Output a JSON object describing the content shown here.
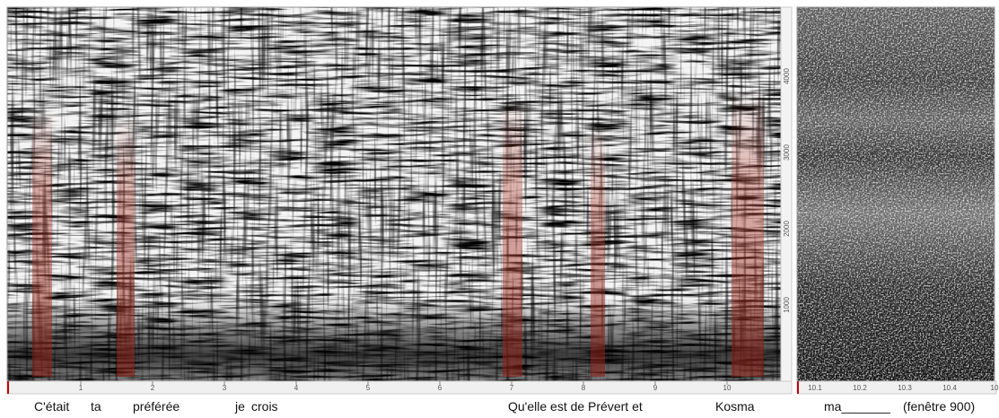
{
  "left_panel": {
    "time_ticks": [
      "1",
      "2",
      "3",
      "4",
      "5",
      "6",
      "7",
      "8",
      "9",
      "10"
    ],
    "freq_ticks": [
      "1000",
      "2000",
      "3000",
      "4000"
    ]
  },
  "right_panel": {
    "time_ticks": [
      "10.1",
      "10.2",
      "10.3",
      "10.4",
      "10"
    ]
  },
  "lyrics": [
    "C'était",
    "ta",
    "préférée",
    "je",
    "crois",
    "Qu'elle est de Prévert et",
    "Kosma",
    "ma_______",
    "(fenêtre 900)"
  ]
}
